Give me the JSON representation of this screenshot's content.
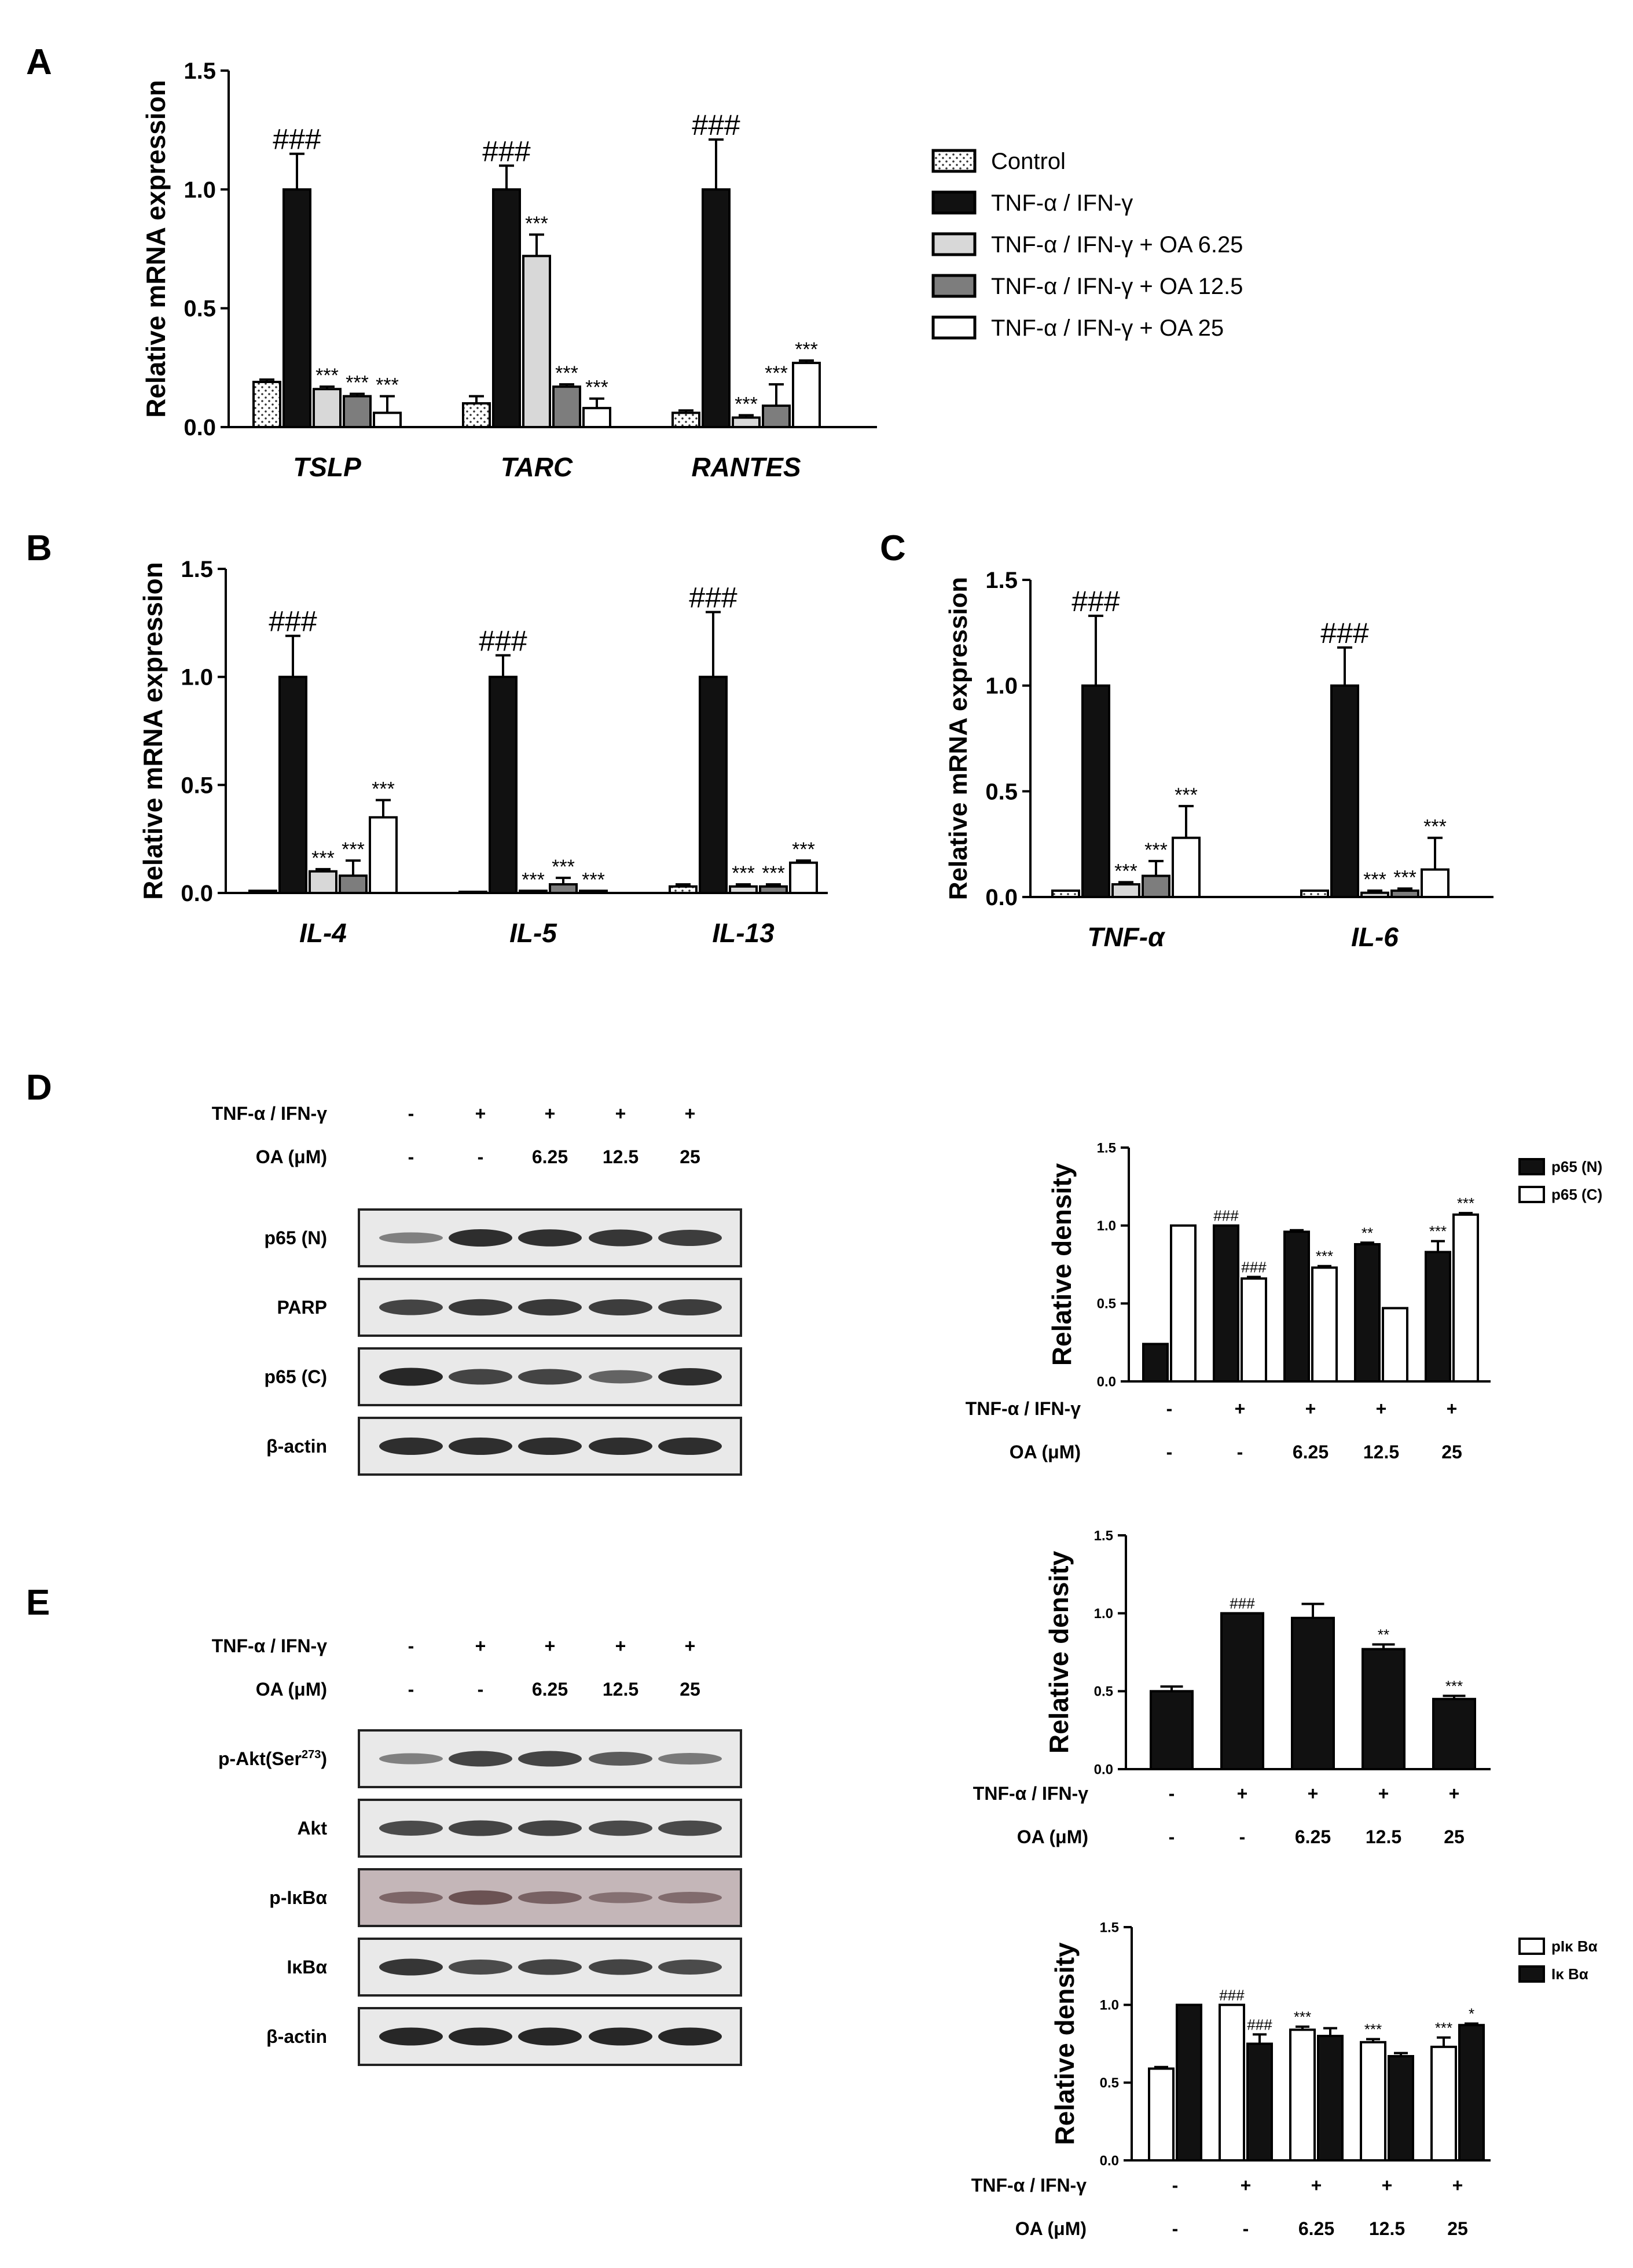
{
  "figure": {
    "panel_letters": [
      "A",
      "B",
      "C",
      "D",
      "E"
    ]
  },
  "colors": {
    "control": "#ffffff",
    "tnf": "#111111",
    "oa625": "#d8d8d8",
    "oa125": "#7d7d7d",
    "oa25": "#ffffff",
    "blot_bg": "#e9e9e9",
    "blot_band": "#1e1e1e",
    "pikba_bg": "#c4b6b8",
    "pikba_band": "#4a2e30"
  },
  "legendA": {
    "items": [
      {
        "label": "Control",
        "fill": "dots"
      },
      {
        "label": "TNF-α  / IFN-γ",
        "fill": "#111111"
      },
      {
        "label": "TNF-α  / IFN-γ   + OA 6.25",
        "fill": "#d8d8d8"
      },
      {
        "label": "TNF-α  / IFN-γ   +  OA 12.5",
        "fill": "#7d7d7d"
      },
      {
        "label": "TNF-α  / IFN-γ   + OA 25",
        "fill": "#ffffff"
      }
    ]
  },
  "chart_data": [
    {
      "id": "A",
      "type": "bar",
      "ylabel": "Relative mRNA expression",
      "ylim": [
        0,
        1.5
      ],
      "ticks": [
        "0.0",
        "0.5",
        "1.0",
        "1.5"
      ],
      "categories": [
        "TSLP",
        "TARC",
        "RANTES"
      ],
      "series": [
        {
          "name": "Control",
          "values": [
            0.19,
            0.1,
            0.06
          ],
          "errors": [
            0.01,
            0.03,
            0.01
          ],
          "labels": [
            "",
            "",
            ""
          ]
        },
        {
          "name": "TNF-α / IFN-γ",
          "values": [
            1.0,
            1.0,
            1.0
          ],
          "errors": [
            0.15,
            0.1,
            0.21
          ],
          "labels": [
            "###",
            "###",
            "###"
          ]
        },
        {
          "name": "TNF-α / IFN-γ + OA 6.25",
          "values": [
            0.16,
            0.72,
            0.04
          ],
          "errors": [
            0.01,
            0.09,
            0.01
          ],
          "labels": [
            "***",
            "***",
            "***"
          ]
        },
        {
          "name": "TNF-α / IFN-γ + OA 12.5",
          "values": [
            0.13,
            0.17,
            0.09
          ],
          "errors": [
            0.01,
            0.01,
            0.09
          ],
          "labels": [
            "***",
            "***",
            "***"
          ]
        },
        {
          "name": "TNF-α / IFN-γ + OA 25",
          "values": [
            0.06,
            0.08,
            0.27
          ],
          "errors": [
            0.07,
            0.04,
            0.01
          ],
          "labels": [
            "***",
            "***",
            "***"
          ]
        }
      ]
    },
    {
      "id": "B",
      "type": "bar",
      "ylabel": "Relative mRNA expression",
      "ylim": [
        0,
        1.5
      ],
      "ticks": [
        "0.0",
        "0.5",
        "1.0",
        "1.5"
      ],
      "categories": [
        "IL-4",
        "IL-5",
        "IL-13"
      ],
      "series": [
        {
          "name": "Control",
          "values": [
            0.01,
            0.0,
            0.03
          ],
          "errors": [
            0.0,
            0.0,
            0.01
          ],
          "labels": [
            "",
            "",
            ""
          ]
        },
        {
          "name": "TNF-α / IFN-γ",
          "values": [
            1.0,
            1.0,
            1.0
          ],
          "errors": [
            0.19,
            0.1,
            0.3
          ],
          "labels": [
            "###",
            "###",
            "###"
          ]
        },
        {
          "name": "TNF-α / IFN-γ + OA 6.25",
          "values": [
            0.1,
            0.01,
            0.03
          ],
          "errors": [
            0.01,
            0.0,
            0.01
          ],
          "labels": [
            "***",
            "***",
            "***"
          ]
        },
        {
          "name": "TNF-α / IFN-γ + OA 12.5",
          "values": [
            0.08,
            0.04,
            0.03
          ],
          "errors": [
            0.07,
            0.03,
            0.01
          ],
          "labels": [
            "***",
            "***",
            "***"
          ]
        },
        {
          "name": "TNF-α / IFN-γ + OA 25",
          "values": [
            0.35,
            0.01,
            0.14
          ],
          "errors": [
            0.08,
            0.0,
            0.01
          ],
          "labels": [
            "***",
            "***",
            "***"
          ]
        }
      ]
    },
    {
      "id": "C",
      "type": "bar",
      "ylabel": "Relative mRNA expression",
      "ylim": [
        0,
        1.5
      ],
      "ticks": [
        "0.0",
        "0.5",
        "1.0",
        "1.5"
      ],
      "categories": [
        "TNF-α",
        "IL-6"
      ],
      "series": [
        {
          "name": "Control",
          "values": [
            0.03,
            0.03
          ],
          "errors": [
            0.0,
            0.0
          ],
          "labels": [
            "",
            ""
          ]
        },
        {
          "name": "TNF-α / IFN-γ",
          "values": [
            1.0,
            1.0
          ],
          "errors": [
            0.33,
            0.18
          ],
          "labels": [
            "###",
            "###"
          ]
        },
        {
          "name": "TNF-α / IFN-γ + OA 6.25",
          "values": [
            0.06,
            0.02
          ],
          "errors": [
            0.01,
            0.01
          ],
          "labels": [
            "***",
            "***"
          ]
        },
        {
          "name": "TNF-α / IFN-γ + OA 12.5",
          "values": [
            0.1,
            0.03
          ],
          "errors": [
            0.07,
            0.01
          ],
          "labels": [
            "***",
            "***"
          ]
        },
        {
          "name": "TNF-α / IFN-γ + OA 25",
          "values": [
            0.28,
            0.13
          ],
          "errors": [
            0.15,
            0.15
          ],
          "labels": [
            "***",
            "***"
          ]
        }
      ]
    },
    {
      "id": "D-density",
      "type": "bar",
      "ylabel": "Relative density",
      "ylim": [
        0,
        1.5
      ],
      "ticks": [
        "0.0",
        "0.5",
        "1.0",
        "1.5"
      ],
      "groups": 5,
      "series": [
        {
          "name": "p65 (N)",
          "fill": "#111111",
          "values": [
            0.24,
            1.0,
            0.96,
            0.88,
            0.83
          ],
          "errors": [
            0,
            0,
            0.01,
            0.01,
            0.07
          ],
          "labels": [
            "",
            "###",
            "",
            "**",
            "***"
          ]
        },
        {
          "name": "p65 (C)",
          "fill": "#ffffff",
          "values": [
            1.0,
            0.66,
            0.73,
            0.47,
            1.07
          ],
          "errors": [
            0,
            0.01,
            0.01,
            0,
            0.01
          ],
          "labels": [
            "",
            "###",
            "***",
            "",
            "***"
          ]
        }
      ],
      "treatment_rows": [
        {
          "label": "TNF-α / IFN-γ",
          "values": [
            "-",
            "+",
            "+",
            "+",
            "+"
          ]
        },
        {
          "label": "OA (μM)",
          "values": [
            "-",
            "-",
            "6.25",
            "12.5",
            "25"
          ]
        }
      ]
    },
    {
      "id": "E-akt-density",
      "type": "bar",
      "ylabel": "Relative density",
      "ylim": [
        0,
        1.5
      ],
      "ticks": [
        "0.0",
        "0.5",
        "1.0",
        "1.5"
      ],
      "groups": 5,
      "series": [
        {
          "name": "",
          "fill": "#111111",
          "values": [
            0.5,
            1.0,
            0.97,
            0.77,
            0.45
          ],
          "errors": [
            0.03,
            0,
            0.09,
            0.03,
            0.02
          ],
          "labels": [
            "",
            "###",
            "",
            "**",
            "***"
          ]
        }
      ],
      "treatment_rows": [
        {
          "label": "TNF-α / IFN-γ",
          "values": [
            "-",
            "+",
            "+",
            "+",
            "+"
          ]
        },
        {
          "label": "OA (μM)",
          "values": [
            "-",
            "-",
            "6.25",
            "12.5",
            "25"
          ]
        }
      ]
    },
    {
      "id": "E-ikb-density",
      "type": "bar",
      "ylabel": "Relative density",
      "ylim": [
        0,
        1.5
      ],
      "ticks": [
        "0.0",
        "0.5",
        "1.0",
        "1.5"
      ],
      "groups": 5,
      "series": [
        {
          "name": "pIκ Bα",
          "fill": "#ffffff",
          "values": [
            0.59,
            1.0,
            0.84,
            0.76,
            0.73
          ],
          "errors": [
            0.01,
            0,
            0.02,
            0.02,
            0.06
          ],
          "labels": [
            "",
            "###",
            "***",
            "***",
            "***"
          ]
        },
        {
          "name": "Iκ Bα",
          "fill": "#111111",
          "values": [
            1.0,
            0.75,
            0.8,
            0.67,
            0.87
          ],
          "errors": [
            0,
            0.06,
            0.05,
            0.02,
            0.01
          ],
          "labels": [
            "",
            "###",
            "",
            "",
            "*"
          ]
        }
      ],
      "treatment_rows": [
        {
          "label": "TNF-α / IFN-γ",
          "values": [
            "-",
            "+",
            "+",
            "+",
            "+"
          ]
        },
        {
          "label": "OA (μM)",
          "values": [
            "-",
            "-",
            "6.25",
            "12.5",
            "25"
          ]
        }
      ]
    }
  ],
  "blotD": {
    "treatment_rows": [
      {
        "label": "TNF-α / IFN-γ",
        "values": [
          "-",
          "+",
          "+",
          "+",
          "+"
        ]
      },
      {
        "label": "OA (μM)",
        "values": [
          "-",
          "-",
          "6.25",
          "12.5",
          "25"
        ]
      }
    ],
    "lanes": [
      {
        "label": "p65 (N)",
        "intensity": [
          0.35,
          0.9,
          0.88,
          0.85,
          0.8
        ]
      },
      {
        "label": "PARP",
        "intensity": [
          0.75,
          0.82,
          0.82,
          0.8,
          0.8
        ]
      },
      {
        "label": "p65 (C)",
        "intensity": [
          0.95,
          0.75,
          0.75,
          0.55,
          0.9
        ]
      },
      {
        "label": "β-actin",
        "intensity": [
          0.9,
          0.9,
          0.9,
          0.9,
          0.9
        ]
      }
    ]
  },
  "blotE": {
    "treatment_rows": [
      {
        "label": "TNF-α / IFN-γ",
        "values": [
          "-",
          "+",
          "+",
          "+",
          "+"
        ]
      },
      {
        "label": "OA (μM)",
        "values": [
          "-",
          "-",
          "6.25",
          "12.5",
          "25"
        ]
      }
    ],
    "lanes": [
      {
        "label": "p-Akt(Ser",
        "sup": "273",
        "close": ")",
        "intensity": [
          0.35,
          0.75,
          0.75,
          0.6,
          0.4
        ]
      },
      {
        "label": "Akt",
        "intensity": [
          0.7,
          0.75,
          0.75,
          0.72,
          0.72
        ]
      },
      {
        "label": "p-IκBα",
        "intensity": [
          0.45,
          0.65,
          0.5,
          0.35,
          0.4
        ],
        "tinted": true
      },
      {
        "label": "IκBα",
        "intensity": [
          0.85,
          0.7,
          0.75,
          0.75,
          0.7
        ]
      },
      {
        "label": "β-actin",
        "intensity": [
          0.95,
          0.95,
          0.95,
          0.95,
          0.95
        ]
      }
    ]
  }
}
